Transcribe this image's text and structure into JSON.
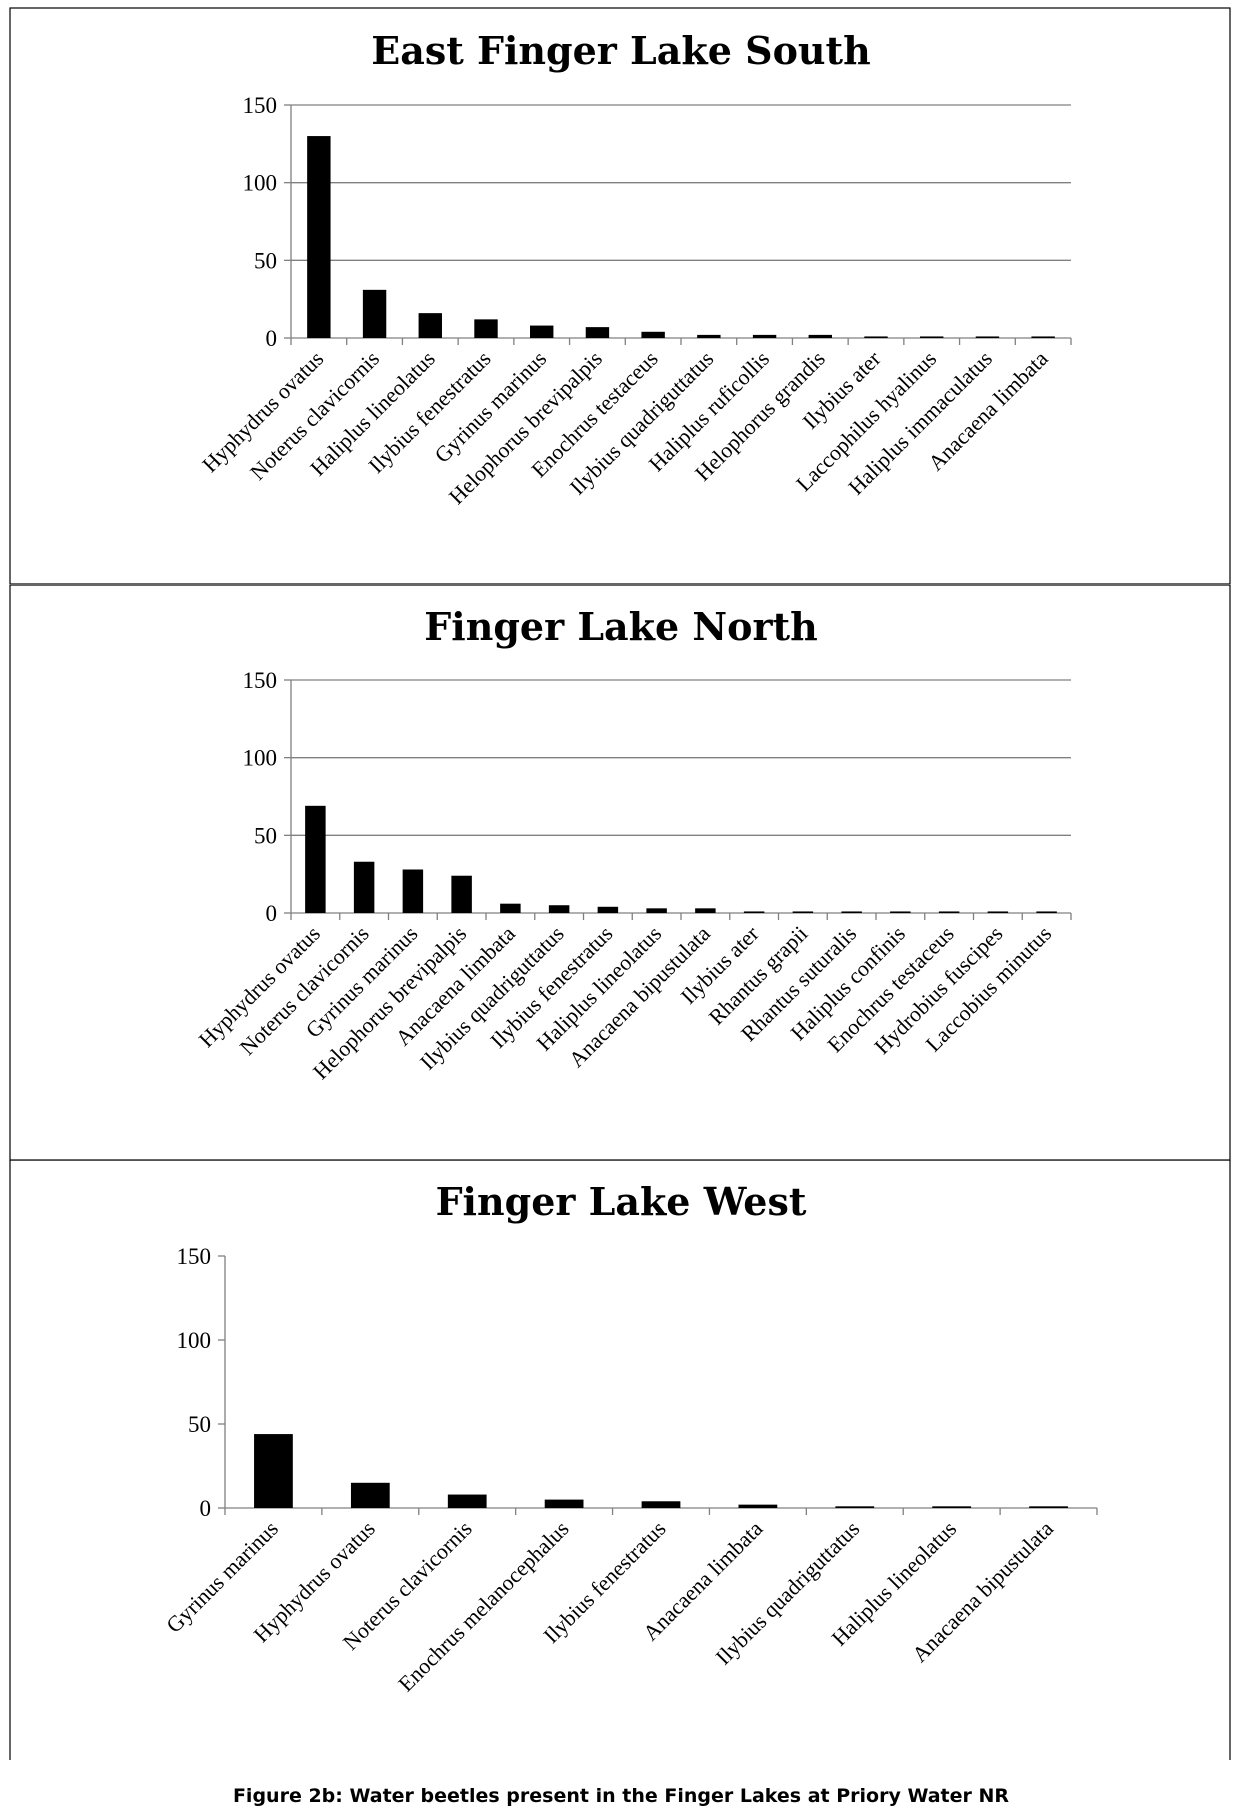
{
  "caption": "Figure 2b:  Water beetles present in the Finger Lakes at Priory Water NR",
  "chart_data": [
    {
      "type": "bar",
      "title": "East Finger Lake South",
      "ylim": [
        0,
        150
      ],
      "yticks": [
        0,
        50,
        100,
        150
      ],
      "grid": true,
      "bar_color": "#000000",
      "categories": [
        "Hyphydrus ovatus",
        "Noterus clavicornis",
        "Haliplus lineolatus",
        "Ilybius fenestratus",
        "Gyrinus marinus",
        "Helophorus brevipalpis",
        "Enochrus testaceus",
        "Ilybius quadriguttatus",
        "Haliplus ruficollis",
        "Helophorus grandis",
        "Ilybius ater",
        "Laccophilus hyalinus",
        "Haliplus immaculatus",
        "Anacaena limbata"
      ],
      "values": [
        130,
        31,
        16,
        12,
        8,
        7,
        4,
        2,
        2,
        2,
        1,
        1,
        1,
        1
      ]
    },
    {
      "type": "bar",
      "title": "Finger Lake North",
      "ylim": [
        0,
        150
      ],
      "yticks": [
        0,
        50,
        100,
        150
      ],
      "grid": true,
      "bar_color": "#000000",
      "categories": [
        "Hyphydrus ovatus",
        "Noterus clavicornis",
        "Gyrinus marinus",
        "Helophorus brevipalpis",
        "Anacaena limbata",
        "Ilybius quadriguttatus",
        "Ilybius fenestratus",
        "Haliplus lineolatus",
        "Anacaena bipustulata",
        "Ilybius ater",
        "Rhantus grapii",
        "Rhantus suturalis",
        "Haliplus confinis",
        "Enochrus testaceus",
        "Hydrobius fuscipes",
        "Laccobius minutus"
      ],
      "values": [
        69,
        33,
        28,
        24,
        6,
        5,
        4,
        3,
        3,
        1,
        1,
        1,
        1,
        1,
        1,
        1
      ]
    },
    {
      "type": "bar",
      "title": "Finger Lake West",
      "ylim": [
        0,
        150
      ],
      "yticks": [
        0,
        50,
        100,
        150
      ],
      "grid": false,
      "bar_color": "#000000",
      "categories": [
        "Gyrinus marinus",
        "Hyphydrus ovatus",
        "Noterus clavicornis",
        "Enochrus  melanocephalus",
        "Ilybius fenestratus",
        "Anacaena limbata",
        "Ilybius quadriguttatus",
        "Haliplus lineolatus",
        "Anacaena bipustulata"
      ],
      "values": [
        44,
        15,
        8,
        5,
        4,
        2,
        1,
        1,
        1
      ]
    }
  ]
}
